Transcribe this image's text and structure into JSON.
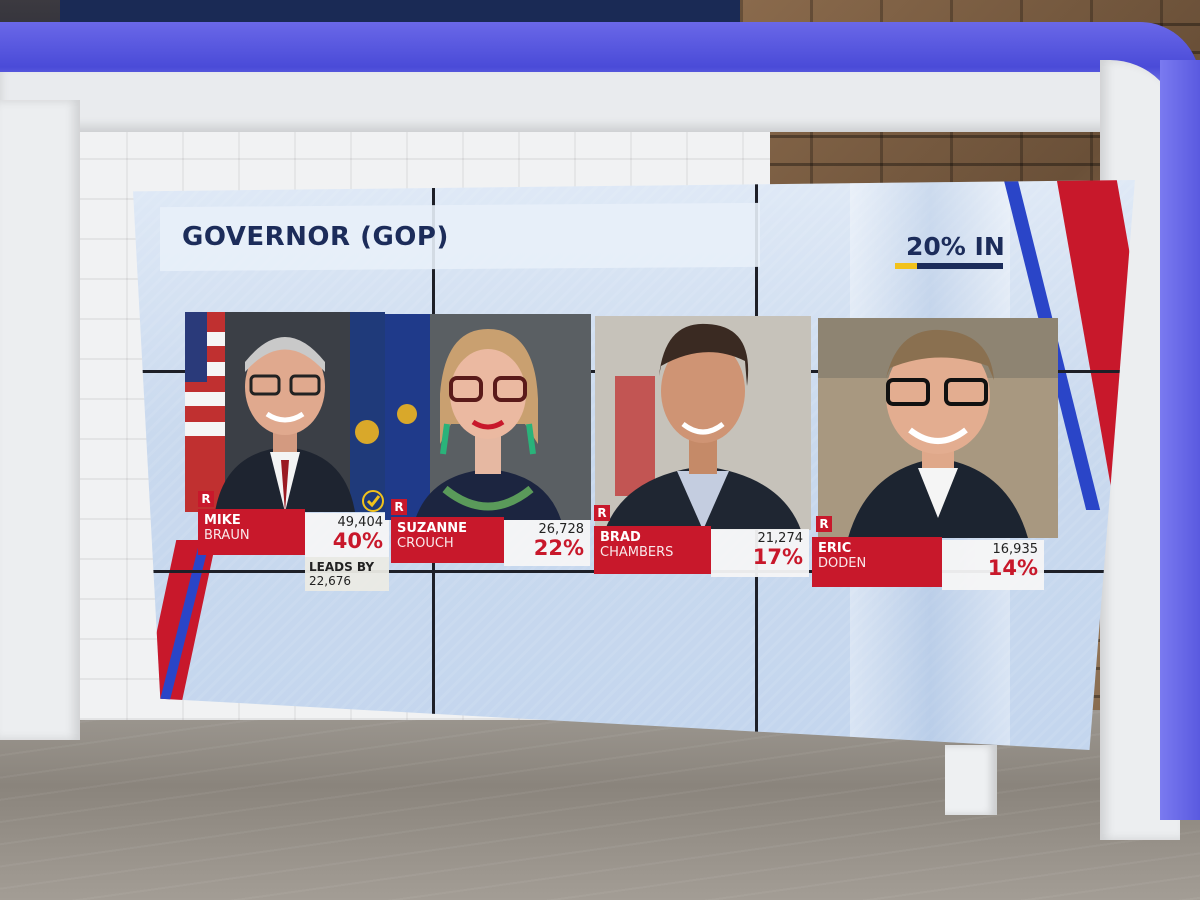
{
  "race": {
    "title": "GOVERNOR (GOP)",
    "reporting_text": "20% IN",
    "reporting_fraction": 0.2
  },
  "leader_note": {
    "label": "LEADS BY",
    "margin": "22,676"
  },
  "candidates": [
    {
      "party": "R",
      "first": "MIKE",
      "last": "BRAUN",
      "votes": "49,404",
      "percent": "40%",
      "winner_check": true
    },
    {
      "party": "R",
      "first": "SUZANNE",
      "last": "CROUCH",
      "votes": "26,728",
      "percent": "22%",
      "winner_check": false
    },
    {
      "party": "R",
      "first": "BRAD",
      "last": "CHAMBERS",
      "votes": "21,274",
      "percent": "17%",
      "winner_check": false
    },
    {
      "party": "R",
      "first": "ERIC",
      "last": "DODEN",
      "votes": "16,935",
      "percent": "14%",
      "winner_check": false
    }
  ],
  "colors": {
    "party_red": "#c8182b",
    "navy_text": "#1c2c5a",
    "check_gold": "#f2c21b",
    "stripe_blue": "#2a45c8",
    "studio_blue": "#5a5ae0"
  },
  "icons": [
    "check-icon",
    "us-flag-icon",
    "indiana-flag-icon"
  ]
}
